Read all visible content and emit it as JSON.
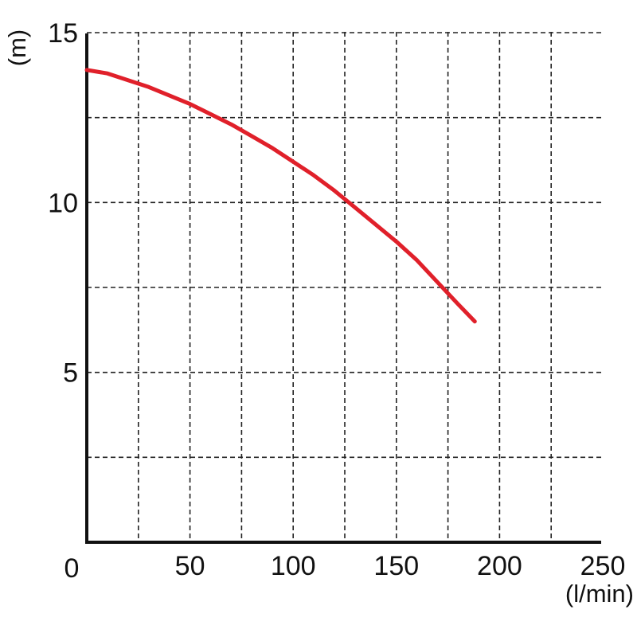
{
  "chart_data": {
    "type": "line",
    "title": "",
    "xlabel": "(l/min)",
    "ylabel": "(m)",
    "xlim": [
      0,
      250
    ],
    "ylim": [
      0,
      15
    ],
    "x_ticks": [
      "0",
      "50",
      "100",
      "150",
      "200",
      "250"
    ],
    "y_ticks": [
      "5",
      "10",
      "15"
    ],
    "grid": true,
    "grid_style": "dashed",
    "line_color": "#e0202a",
    "series": [
      {
        "x": [
          0,
          10,
          20,
          30,
          40,
          50,
          60,
          70,
          80,
          90,
          100,
          110,
          120,
          130,
          140,
          150,
          160,
          170,
          180,
          188
        ],
        "y": [
          13.9,
          13.8,
          13.6,
          13.4,
          13.15,
          12.9,
          12.6,
          12.3,
          11.95,
          11.6,
          11.2,
          10.8,
          10.35,
          9.85,
          9.35,
          8.85,
          8.3,
          7.65,
          7.0,
          6.5
        ]
      }
    ]
  }
}
